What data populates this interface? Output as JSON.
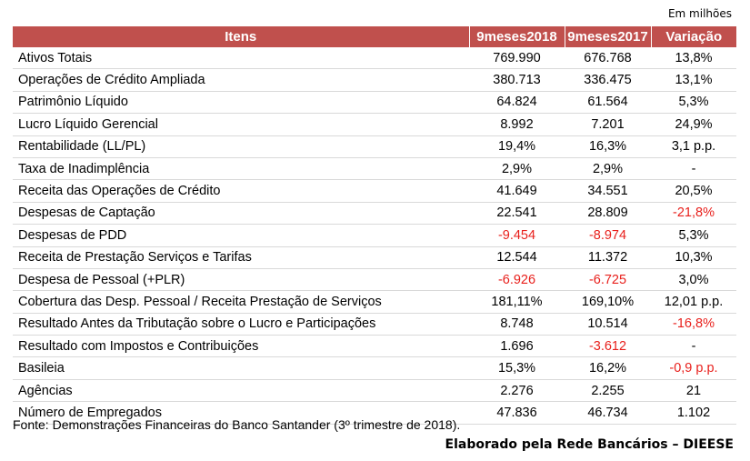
{
  "unit_note": "Em milhões",
  "table": {
    "headers": [
      "Itens",
      "9meses2018",
      "9meses2017",
      "Variação"
    ],
    "rows": [
      {
        "item": "Ativos Totais",
        "v2018": "769.990",
        "v2017": "676.768",
        "var": "13,8%",
        "neg": [
          false,
          false,
          false
        ]
      },
      {
        "item": "Operações de Crédito Ampliada",
        "v2018": "380.713",
        "v2017": "336.475",
        "var": "13,1%",
        "neg": [
          false,
          false,
          false
        ]
      },
      {
        "item": "Patrimônio Líquido",
        "v2018": "64.824",
        "v2017": "61.564",
        "var": "5,3%",
        "neg": [
          false,
          false,
          false
        ]
      },
      {
        "item": "Lucro Líquido Gerencial",
        "v2018": "8.992",
        "v2017": "7.201",
        "var": "24,9%",
        "neg": [
          false,
          false,
          false
        ]
      },
      {
        "item": "Rentabilidade (LL/PL)",
        "v2018": "19,4%",
        "v2017": "16,3%",
        "var": "3,1 p.p.",
        "neg": [
          false,
          false,
          false
        ]
      },
      {
        "item": "Taxa de Inadimplência",
        "v2018": "2,9%",
        "v2017": "2,9%",
        "var": "-",
        "neg": [
          false,
          false,
          false
        ]
      },
      {
        "item": "Receita das Operações de Crédito",
        "v2018": "41.649",
        "v2017": "34.551",
        "var": "20,5%",
        "neg": [
          false,
          false,
          false
        ]
      },
      {
        "item": "Despesas de Captação",
        "v2018": "22.541",
        "v2017": "28.809",
        "var": "-21,8%",
        "neg": [
          false,
          false,
          true
        ]
      },
      {
        "item": "Despesas de PDD",
        "v2018": "-9.454",
        "v2017": "-8.974",
        "var": "5,3%",
        "neg": [
          true,
          true,
          false
        ]
      },
      {
        "item": "Receita de Prestação Serviços e Tarifas",
        "v2018": "12.544",
        "v2017": "11.372",
        "var": "10,3%",
        "neg": [
          false,
          false,
          false
        ]
      },
      {
        "item": "Despesa de Pessoal (+PLR)",
        "v2018": "-6.926",
        "v2017": "-6.725",
        "var": "3,0%",
        "neg": [
          true,
          true,
          false
        ]
      },
      {
        "item": "Cobertura das Desp. Pessoal / Receita Prestação de Serviços",
        "v2018": "181,11%",
        "v2017": "169,10%",
        "var": "12,01 p.p.",
        "neg": [
          false,
          false,
          false
        ]
      },
      {
        "item": "Resultado Antes da Tributação sobre o Lucro e Participações",
        "v2018": "8.748",
        "v2017": "10.514",
        "var": "-16,8%",
        "neg": [
          false,
          false,
          true
        ]
      },
      {
        "item": "Resultado com Impostos e Contribuições",
        "v2018": "1.696",
        "v2017": "-3.612",
        "var": "-",
        "neg": [
          false,
          true,
          false
        ]
      },
      {
        "item": "Basileia",
        "v2018": "15,3%",
        "v2017": "16,2%",
        "var": "-0,9 p.p.",
        "neg": [
          false,
          false,
          true
        ]
      },
      {
        "item": "Agências",
        "v2018": "2.276",
        "v2017": "2.255",
        "var": "21",
        "neg": [
          false,
          false,
          false
        ]
      },
      {
        "item": "Número de Empregados",
        "v2018": "47.836",
        "v2017": "46.734",
        "var": "1.102",
        "neg": [
          false,
          false,
          false
        ]
      }
    ]
  },
  "source": "Fonte: Demonstrações Financeiras do Banco Santander (3º trimestre de 2018).",
  "credit": "Elaborado pela Rede Bancários – DIEESE",
  "colors": {
    "header_bg": "#c0504d",
    "negative": "#e8201c"
  }
}
